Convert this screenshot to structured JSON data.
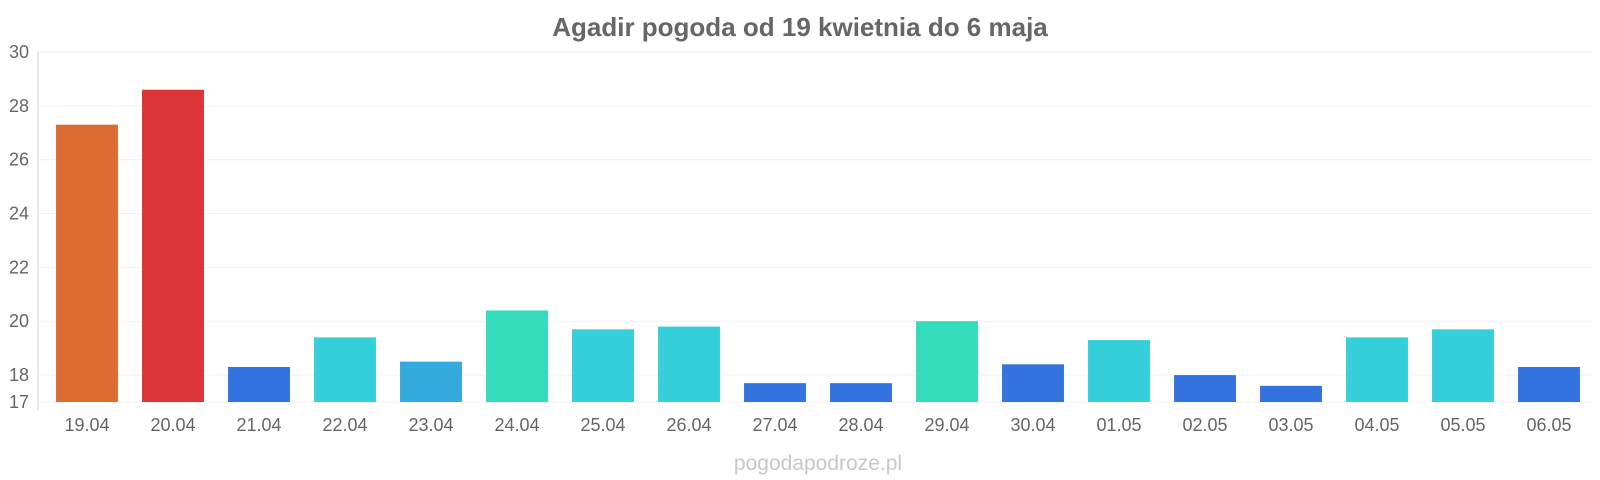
{
  "chart_data": {
    "type": "bar",
    "title": "Agadir pogoda od 19 kwietnia do 6 maja",
    "xlabel": "",
    "ylabel": "",
    "ylim": [
      17,
      30
    ],
    "yticks": [
      17,
      18,
      20,
      22,
      24,
      26,
      28,
      30
    ],
    "grid": true,
    "categories": [
      "19.04",
      "20.04",
      "21.04",
      "22.04",
      "23.04",
      "24.04",
      "25.04",
      "26.04",
      "27.04",
      "28.04",
      "29.04",
      "30.04",
      "01.05",
      "02.05",
      "03.05",
      "04.05",
      "05.05",
      "06.05"
    ],
    "values": [
      27.3,
      28.6,
      18.3,
      19.4,
      18.5,
      20.4,
      19.7,
      19.8,
      17.7,
      17.7,
      20.0,
      18.4,
      19.3,
      18.0,
      17.6,
      19.4,
      19.7,
      18.3
    ],
    "colors": [
      "#dd6c32",
      "#dc3535",
      "#3373de",
      "#35cfdc",
      "#33a9de",
      "#34dbbd",
      "#35cfdc",
      "#35cfdc",
      "#3373de",
      "#3373de",
      "#34dbbd",
      "#3373de",
      "#35cfdc",
      "#3373de",
      "#3373de",
      "#35cfdc",
      "#35cfdc",
      "#3373de"
    ]
  },
  "watermark": "pogodapodroze.pl"
}
